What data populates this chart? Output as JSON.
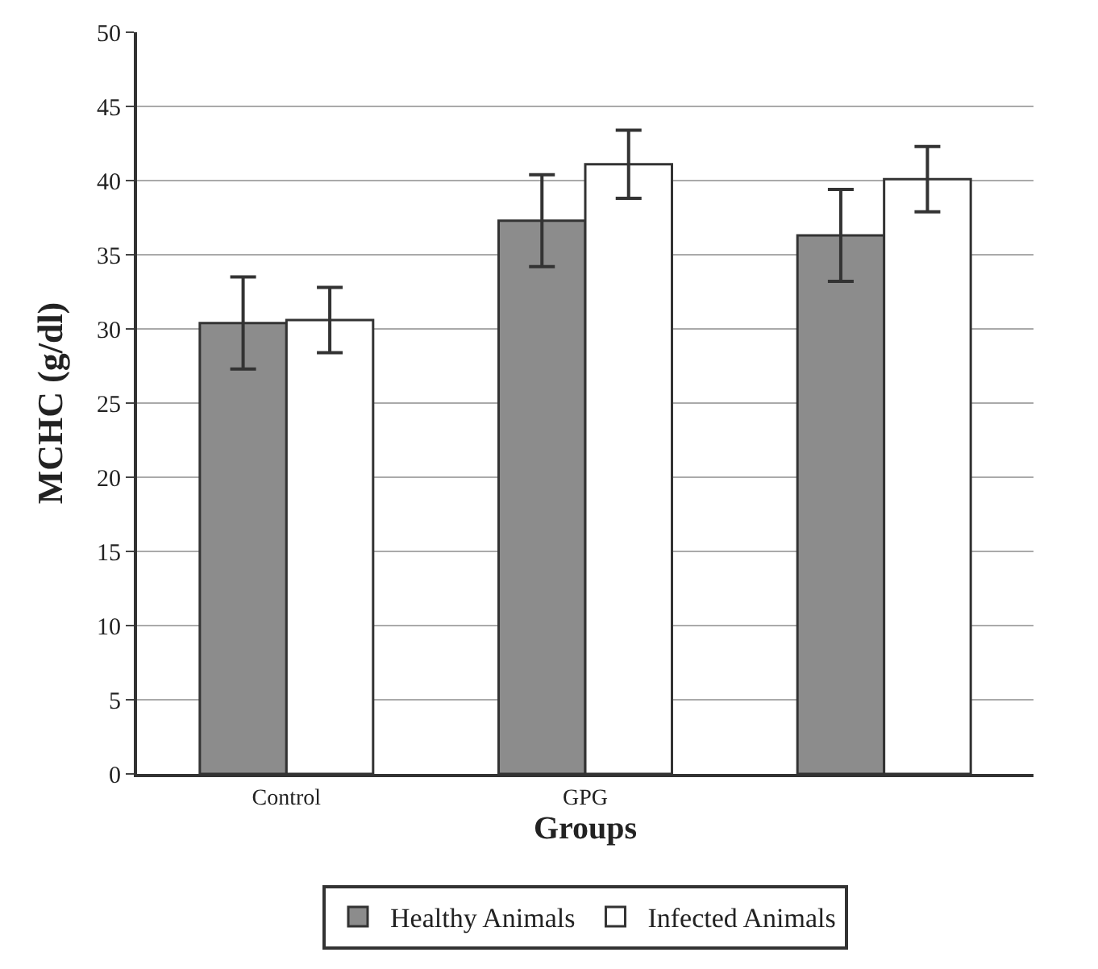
{
  "chart_data": {
    "type": "bar",
    "xlabel": "Groups",
    "ylabel": "MCHC (g/dl)",
    "categories": [
      "Control",
      "GPG",
      null
    ],
    "series": [
      {
        "name": "Healthy Animals",
        "color": "#8c8c8c",
        "values": [
          30.4,
          37.3,
          36.3
        ],
        "errors": [
          3.1,
          3.1,
          3.1
        ]
      },
      {
        "name": "Infected Animals",
        "color": "#ffffff",
        "values": [
          30.6,
          41.1,
          40.1
        ],
        "errors": [
          2.2,
          2.3,
          2.2
        ]
      }
    ],
    "ylim": [
      0,
      50
    ],
    "yticks": [
      0,
      5,
      10,
      15,
      20,
      25,
      30,
      35,
      40,
      45,
      50
    ],
    "grid": "y",
    "legend": "bottom"
  }
}
